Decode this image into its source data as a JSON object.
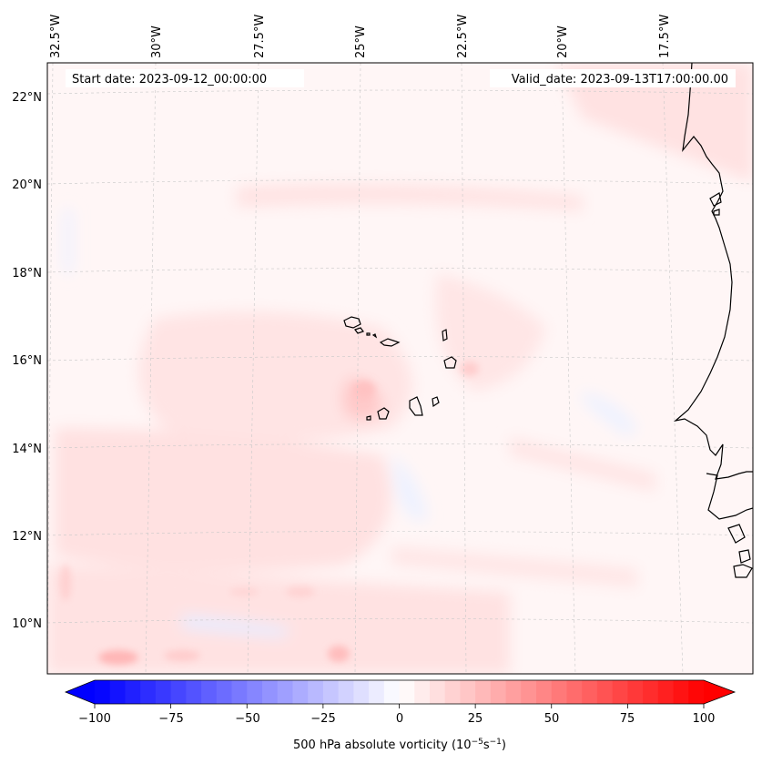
{
  "map": {
    "start_label": "Start date: 2023-09-12_00:00:00",
    "valid_label": "Valid_date: 2023-09-13T17:00:00.00",
    "lon_ticks": [
      "32.5°W",
      "30°W",
      "27.5°W",
      "25°W",
      "22.5°W",
      "20°W",
      "17.5°W"
    ],
    "lat_ticks": [
      "22°N",
      "20°N",
      "18°N",
      "16°N",
      "14°N",
      "12°N",
      "10°N"
    ]
  },
  "colorbar": {
    "tick_labels": [
      "−100",
      "−75",
      "−50",
      "−25",
      "0",
      "25",
      "50",
      "75",
      "100"
    ],
    "label": "500 hPa absolute vorticity (10",
    "label_exp1": "−5",
    "label_mid": "s",
    "label_exp2": "−1",
    "label_end": ")",
    "min": -100,
    "max": 100,
    "step": 5,
    "colors": {
      "low": "#0000ff",
      "mid": "#ffffff",
      "high": "#ff0000"
    }
  },
  "colors": {
    "coast": "#000000",
    "grid": "#c8c8c8",
    "frame": "#000000"
  }
}
